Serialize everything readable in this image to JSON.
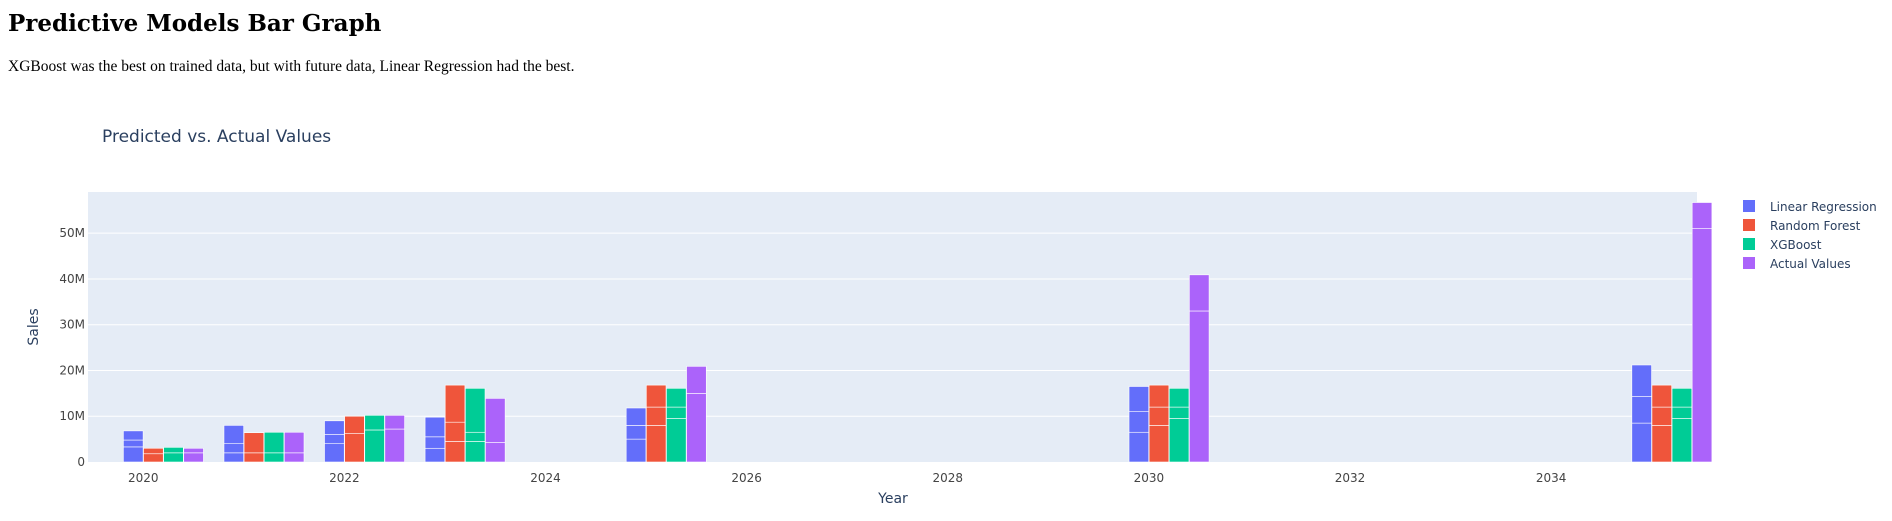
{
  "page": {
    "title": "Predictive Models Bar Graph",
    "description": "XGBoost was the best on trained data, but with future data, Linear Regression had the best."
  },
  "colors": {
    "plot_bg": "#e5ecf6",
    "grid": "#ffffff",
    "text": "#2a3f5f",
    "axis_text": "#444444"
  },
  "chart_data": {
    "type": "bar",
    "title": "Predicted vs. Actual Values",
    "xlabel": "Year",
    "ylabel": "Sales",
    "barmode": "group",
    "xlim": [
      2019.45,
      2035.45
    ],
    "ylim": [
      0,
      59000000
    ],
    "x_ticks": [
      2020,
      2022,
      2024,
      2026,
      2028,
      2030,
      2032,
      2034
    ],
    "x_tick_labels": [
      "2020",
      "2022",
      "2024",
      "2026",
      "2028",
      "2030",
      "2032",
      "2034"
    ],
    "y_ticks": [
      0,
      10000000,
      20000000,
      30000000,
      40000000,
      50000000
    ],
    "y_tick_labels": [
      "0",
      "10M",
      "20M",
      "30M",
      "40M",
      "50M"
    ],
    "grid": true,
    "legend_position": "top-right, outside plot",
    "series": [
      {
        "name": "Linear Regression",
        "color": "#636efa",
        "points": [
          {
            "x": 2020,
            "segments": [
              3300000,
              1500000,
              2000000
            ]
          },
          {
            "x": 2021,
            "segments": [
              2000000,
              2000000,
              4000000
            ]
          },
          {
            "x": 2022,
            "segments": [
              4000000,
              2000000,
              3000000
            ]
          },
          {
            "x": 2023,
            "segments": [
              3000000,
              2500000,
              4300000
            ]
          },
          {
            "x": 2025,
            "segments": [
              5000000,
              3000000,
              3800000
            ]
          },
          {
            "x": 2030,
            "segments": [
              6500000,
              4500000,
              5500000
            ]
          },
          {
            "x": 2035,
            "segments": [
              8500000,
              5800000,
              6900000
            ]
          }
        ]
      },
      {
        "name": "Random Forest",
        "color": "#ef553b",
        "points": [
          {
            "x": 2020,
            "segments": [
              1800000,
              1200000
            ]
          },
          {
            "x": 2021,
            "segments": [
              2000000,
              4400000
            ]
          },
          {
            "x": 2022,
            "segments": [
              6200000,
              3800000
            ]
          },
          {
            "x": 2023,
            "segments": [
              4500000,
              4200000,
              8100000
            ]
          },
          {
            "x": 2025,
            "segments": [
              8000000,
              4000000,
              4800000
            ]
          },
          {
            "x": 2030,
            "segments": [
              8000000,
              4000000,
              4800000
            ]
          },
          {
            "x": 2035,
            "segments": [
              8000000,
              4000000,
              4800000
            ]
          }
        ]
      },
      {
        "name": "XGBoost",
        "color": "#00cc96",
        "points": [
          {
            "x": 2020,
            "segments": [
              2000000,
              1200000
            ]
          },
          {
            "x": 2021,
            "segments": [
              2000000,
              4500000
            ]
          },
          {
            "x": 2022,
            "segments": [
              7000000,
              3200000
            ]
          },
          {
            "x": 2023,
            "segments": [
              4500000,
              2000000,
              9600000
            ]
          },
          {
            "x": 2025,
            "segments": [
              9500000,
              2500000,
              4100000
            ]
          },
          {
            "x": 2030,
            "segments": [
              9500000,
              2500000,
              4100000
            ]
          },
          {
            "x": 2035,
            "segments": [
              9500000,
              2500000,
              4100000
            ]
          }
        ]
      },
      {
        "name": "Actual Values",
        "color": "#ab63fa",
        "points": [
          {
            "x": 2020,
            "segments": [
              2000000,
              1000000
            ]
          },
          {
            "x": 2021,
            "segments": [
              2000000,
              4500000
            ]
          },
          {
            "x": 2022,
            "segments": [
              7200000,
              3000000
            ]
          },
          {
            "x": 2023,
            "segments": [
              4300000,
              9600000
            ]
          },
          {
            "x": 2025,
            "segments": [
              15000000,
              5900000
            ]
          },
          {
            "x": 2030,
            "segments": [
              33000000,
              7900000
            ]
          },
          {
            "x": 2035,
            "segments": [
              51000000,
              5700000
            ]
          }
        ]
      }
    ]
  }
}
